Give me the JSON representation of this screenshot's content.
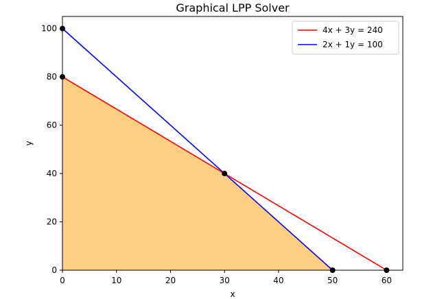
{
  "chart_data": {
    "type": "line",
    "title": "Graphical LPP Solver",
    "xlabel": "x",
    "ylabel": "y",
    "xlim": [
      0,
      63
    ],
    "ylim": [
      0,
      105
    ],
    "x_ticks": [
      0,
      10,
      20,
      30,
      40,
      50,
      60
    ],
    "y_ticks": [
      0,
      20,
      40,
      60,
      80,
      100
    ],
    "grid": false,
    "legend_position": "top-right",
    "series": [
      {
        "name": "4x + 3y = 240",
        "color": "#ff0000",
        "points": [
          [
            0,
            80
          ],
          [
            60,
            0
          ]
        ]
      },
      {
        "name": "2x + 1y = 100",
        "color": "#0000ff",
        "points": [
          [
            0,
            100
          ],
          [
            50,
            0
          ]
        ]
      }
    ],
    "feasible_region": {
      "color": "#fdb94d",
      "vertices": [
        [
          0,
          0
        ],
        [
          0,
          80
        ],
        [
          30,
          40
        ],
        [
          50,
          0
        ]
      ]
    },
    "corner_points": [
      [
        0,
        100
      ],
      [
        0,
        80
      ],
      [
        30,
        40
      ],
      [
        50,
        0
      ],
      [
        60,
        0
      ]
    ]
  }
}
